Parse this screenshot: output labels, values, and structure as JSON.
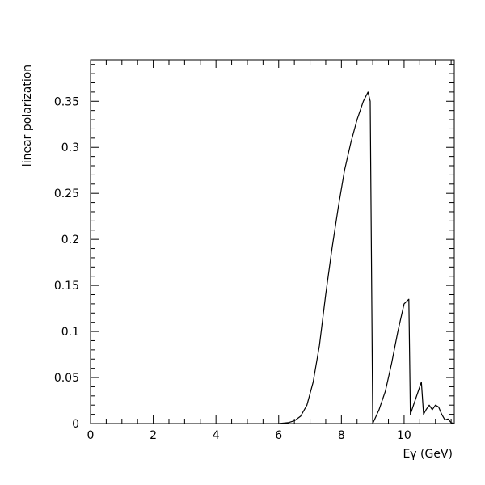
{
  "chart_data": {
    "type": "line",
    "title": "",
    "xlabel": "Eγ (GeV)",
    "ylabel": "linear polarization",
    "xlim": [
      0,
      11.6
    ],
    "ylim": [
      0,
      0.395
    ],
    "grid": false,
    "x_ticks": [
      0,
      2,
      4,
      6,
      8,
      10
    ],
    "x_tick_labels": [
      "0",
      "2",
      "4",
      "6",
      "8",
      "10"
    ],
    "y_ticks": [
      0,
      0.05,
      0.1,
      0.15,
      0.2,
      0.25,
      0.3,
      0.35
    ],
    "y_tick_labels": [
      "0",
      "0.05",
      "0.1",
      "0.15",
      "0.2",
      "0.25",
      "0.3",
      "0.35"
    ],
    "series": [
      {
        "color": "#000000",
        "x": [
          6.0,
          6.3,
          6.5,
          6.7,
          6.9,
          7.1,
          7.3,
          7.5,
          7.7,
          7.9,
          8.1,
          8.3,
          8.5,
          8.7,
          8.85,
          8.92,
          9.0,
          9.2,
          9.4,
          9.6,
          9.8,
          10.0,
          10.15,
          10.2,
          10.35,
          10.5,
          10.55,
          10.62,
          10.7,
          10.8,
          10.9,
          11.0,
          11.1,
          11.2,
          11.3,
          11.4,
          11.5,
          11.6
        ],
        "y": [
          0.0,
          0.001,
          0.003,
          0.008,
          0.02,
          0.045,
          0.085,
          0.14,
          0.19,
          0.235,
          0.275,
          0.305,
          0.33,
          0.35,
          0.36,
          0.35,
          0.0,
          0.015,
          0.035,
          0.065,
          0.1,
          0.13,
          0.135,
          0.01,
          0.025,
          0.04,
          0.045,
          0.01,
          0.015,
          0.02,
          0.015,
          0.02,
          0.018,
          0.01,
          0.004,
          0.005,
          0.001,
          0.0
        ]
      }
    ]
  }
}
